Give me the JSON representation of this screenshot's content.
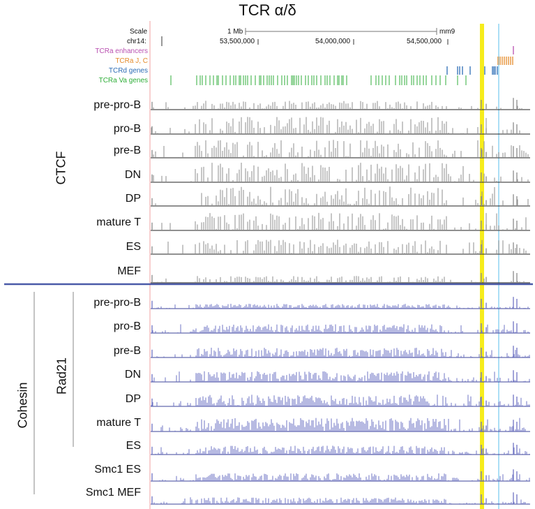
{
  "title": "TCR α/δ",
  "browser": {
    "scale_label": "Scale",
    "chrom_label": "chr14:",
    "scale_bar_text": "1 Mb",
    "assembly": "mm9",
    "coordinates": [
      "53,500,000",
      "54,000,000",
      "54,500,000"
    ]
  },
  "annotation_tracks": [
    {
      "label": "TCRa enhancers",
      "color": "#b84fb0"
    },
    {
      "label": "TCRa J, C",
      "color": "#e48a2a"
    },
    {
      "label": "TCRd genes",
      "color": "#2d6cb5"
    },
    {
      "label": "TCRa Va genes",
      "color": "#2fae39"
    }
  ],
  "groups": {
    "ctcf": "CTCF",
    "cohesin": "Cohesin",
    "rad21": "Rad21"
  },
  "ctcf_tracks": [
    "pre-pro-B",
    "pro-B",
    "pre-B",
    "DN",
    "DP",
    "mature T",
    "ES",
    "MEF"
  ],
  "cohesin_tracks": [
    "pre-pro-B",
    "pro-B",
    "pre-B",
    "DN",
    "DP",
    "mature T",
    "ES",
    "Smc1  ES",
    "Smc1  MEF"
  ],
  "colors": {
    "ctcf_signal": "#8c8c8c",
    "cohesin_signal": "#6f74c4",
    "highlight_yellow": "#f6ec1c",
    "highlight_blue": "#8fd3f2",
    "divider": "#4a5aa8"
  }
}
